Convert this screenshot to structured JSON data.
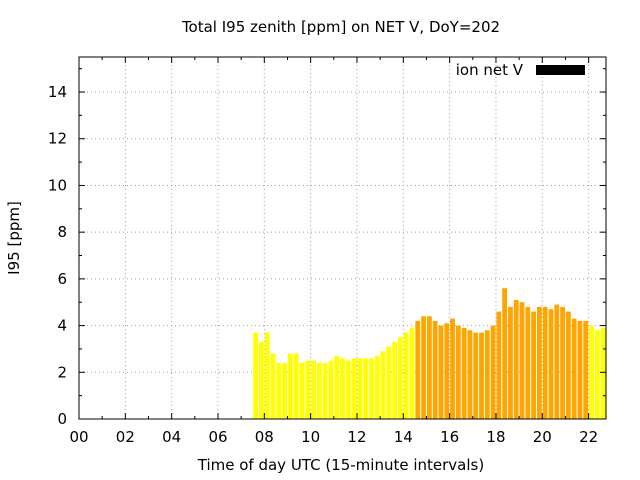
{
  "chart_data": {
    "type": "bar",
    "title": "Total I95 zenith [ppm] on NET V, DoY=202",
    "xlabel": "Time of day UTC (15-minute intervals)",
    "ylabel": "I95 [ppm]",
    "xlim": [
      0,
      22.75
    ],
    "ylim": [
      0,
      15.5
    ],
    "x_ticks": [
      0,
      2,
      4,
      6,
      8,
      10,
      12,
      14,
      16,
      18,
      20,
      22
    ],
    "x_tick_labels": [
      "00",
      "02",
      "04",
      "06",
      "08",
      "10",
      "12",
      "14",
      "16",
      "18",
      "20",
      "22"
    ],
    "y_ticks": [
      0,
      2,
      4,
      6,
      8,
      10,
      12,
      14
    ],
    "y_tick_labels": [
      "0",
      "2",
      "4",
      "6",
      "8",
      "10",
      "12",
      "14"
    ],
    "grid": true,
    "legend": {
      "position": "top-right",
      "label": "ion net V",
      "color": "#000000"
    },
    "bar_colors": {
      "low": "#ffff00",
      "high": "#ffa500"
    },
    "interval_hours": 0.25,
    "series": [
      {
        "name": "ion net V",
        "x": [
          7.5,
          7.75,
          8.0,
          8.25,
          8.5,
          8.75,
          9.0,
          9.25,
          9.5,
          9.75,
          10.0,
          10.25,
          10.5,
          10.75,
          11.0,
          11.25,
          11.5,
          11.75,
          12.0,
          12.25,
          12.5,
          12.75,
          13.0,
          13.25,
          13.5,
          13.75,
          14.0,
          14.25,
          14.5,
          14.75,
          15.0,
          15.25,
          15.5,
          15.75,
          16.0,
          16.25,
          16.5,
          16.75,
          17.0,
          17.25,
          17.5,
          17.75,
          18.0,
          18.25,
          18.5,
          18.75,
          19.0,
          19.25,
          19.5,
          19.75,
          20.0,
          20.25,
          20.5,
          20.75,
          21.0,
          21.25,
          21.5,
          21.75,
          22.0,
          22.25,
          22.5
        ],
        "values": [
          3.7,
          3.3,
          3.7,
          2.8,
          2.4,
          2.4,
          2.8,
          2.8,
          2.4,
          2.5,
          2.5,
          2.4,
          2.4,
          2.5,
          2.7,
          2.6,
          2.5,
          2.6,
          2.6,
          2.6,
          2.6,
          2.7,
          2.9,
          3.1,
          3.3,
          3.5,
          3.7,
          3.9,
          4.2,
          4.4,
          4.4,
          4.2,
          4.0,
          4.1,
          4.3,
          4.0,
          3.9,
          3.8,
          3.7,
          3.7,
          3.8,
          4.0,
          4.6,
          5.6,
          4.8,
          5.1,
          5.0,
          4.8,
          4.6,
          4.8,
          4.8,
          4.7,
          4.9,
          4.8,
          4.6,
          4.3,
          4.2,
          4.2,
          4.0,
          3.8,
          3.9
        ],
        "levels": [
          "low",
          "low",
          "low",
          "low",
          "low",
          "low",
          "low",
          "low",
          "low",
          "low",
          "low",
          "low",
          "low",
          "low",
          "low",
          "low",
          "low",
          "low",
          "low",
          "low",
          "low",
          "low",
          "low",
          "low",
          "low",
          "low",
          "low",
          "low",
          "high",
          "high",
          "high",
          "high",
          "high",
          "high",
          "high",
          "high",
          "high",
          "high",
          "high",
          "high",
          "high",
          "high",
          "high",
          "high",
          "high",
          "high",
          "high",
          "high",
          "high",
          "high",
          "high",
          "high",
          "high",
          "high",
          "high",
          "high",
          "high",
          "high",
          "low",
          "low",
          "low"
        ]
      }
    ]
  }
}
